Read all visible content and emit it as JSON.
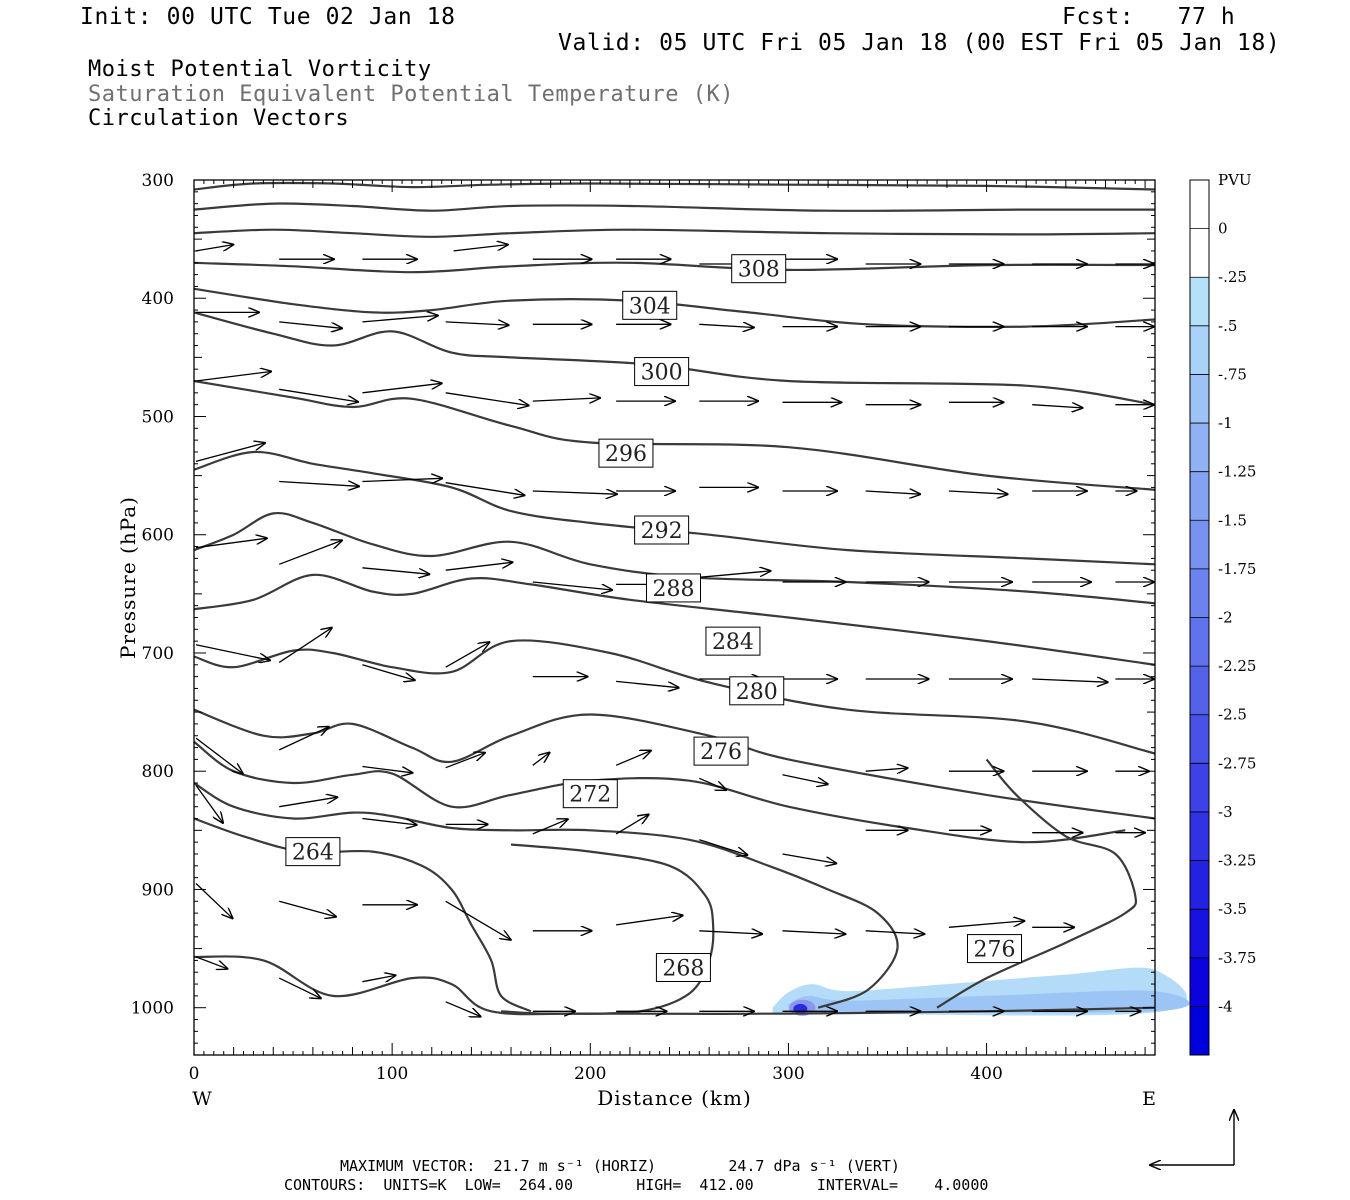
{
  "header": {
    "init": "Init: 00 UTC Tue 02 Jan 18",
    "fcst": "Fcst:   77 h",
    "valid": "Valid: 05 UTC Fri 05 Jan 18 (00 EST Fri 05 Jan 18)"
  },
  "legend": {
    "line1": "Moist Potential Vorticity",
    "line2": "Saturation Equivalent Potential Temperature (K)",
    "line3": "Circulation Vectors"
  },
  "colors": {
    "contour": "#3a3a3a",
    "legend_gray": "#707070",
    "mpv_light": "#b4dcf8",
    "mpv_mid": "#9cc4f4",
    "mpv_dark": "#2a2ae0"
  },
  "footer": {
    "line1": "MAXIMUM VECTOR:  21.7 m s⁻¹ (HORIZ)        24.7 dPa s⁻¹ (VERT)",
    "line2": "CONTOURS:  UNITS=K  LOW=  264.00       HIGH=  412.00       INTERVAL=    4.0000"
  },
  "chart_data": {
    "type": "contour-cross-section",
    "xlabel": "Distance (km)",
    "ylabel": "Pressure (hPa)",
    "xlim": [
      0,
      485
    ],
    "ylim": [
      1040,
      300
    ],
    "x_ticks": [
      0,
      100,
      200,
      300,
      400
    ],
    "y_ticks": [
      300,
      400,
      500,
      600,
      700,
      800,
      900,
      1000
    ],
    "x_end_labels": {
      "left": "W",
      "right": "E"
    },
    "contour_labels": [
      {
        "value": "308",
        "x": 285,
        "p": 375
      },
      {
        "value": "304",
        "x": 230,
        "p": 406
      },
      {
        "value": "300",
        "x": 236,
        "p": 462
      },
      {
        "value": "296",
        "x": 218,
        "p": 531
      },
      {
        "value": "292",
        "x": 236,
        "p": 596
      },
      {
        "value": "288",
        "x": 242,
        "p": 645
      },
      {
        "value": "284",
        "x": 272,
        "p": 690
      },
      {
        "value": "280",
        "x": 284,
        "p": 732
      },
      {
        "value": "276",
        "x": 266,
        "p": 783
      },
      {
        "value": "272",
        "x": 200,
        "p": 819
      },
      {
        "value": "264",
        "x": 60,
        "p": 868
      },
      {
        "value": "268",
        "x": 247,
        "p": 966
      },
      {
        "value": "276",
        "x": 404,
        "p": 950
      }
    ],
    "isentropes": [
      [
        [
          0,
          308
        ],
        [
          30,
          303
        ],
        [
          70,
          303
        ],
        [
          110,
          306
        ],
        [
          150,
          304
        ],
        [
          200,
          303
        ],
        [
          300,
          304
        ],
        [
          400,
          305
        ],
        [
          485,
          308
        ]
      ],
      [
        [
          0,
          325
        ],
        [
          40,
          320
        ],
        [
          80,
          322
        ],
        [
          120,
          326
        ],
        [
          160,
          322
        ],
        [
          220,
          322
        ],
        [
          320,
          326
        ],
        [
          420,
          325
        ],
        [
          485,
          325
        ]
      ],
      [
        [
          0,
          345
        ],
        [
          40,
          342
        ],
        [
          80,
          345
        ],
        [
          120,
          348
        ],
        [
          160,
          345
        ],
        [
          220,
          342
        ],
        [
          320,
          345
        ],
        [
          420,
          346
        ],
        [
          485,
          345
        ]
      ],
      [
        [
          0,
          370
        ],
        [
          50,
          373
        ],
        [
          110,
          378
        ],
        [
          160,
          373
        ],
        [
          220,
          370
        ],
        [
          300,
          376
        ],
        [
          400,
          372
        ],
        [
          485,
          372
        ]
      ],
      [
        [
          0,
          392
        ],
        [
          50,
          405
        ],
        [
          90,
          412
        ],
        [
          120,
          410
        ],
        [
          160,
          402
        ],
        [
          220,
          402
        ],
        [
          280,
          412
        ],
        [
          340,
          422
        ],
        [
          420,
          424
        ],
        [
          485,
          418
        ]
      ],
      [
        [
          0,
          412
        ],
        [
          40,
          430
        ],
        [
          70,
          440
        ],
        [
          100,
          428
        ],
        [
          130,
          446
        ],
        [
          160,
          450
        ],
        [
          230,
          456
        ],
        [
          300,
          470
        ],
        [
          420,
          474
        ],
        [
          485,
          490
        ]
      ],
      [
        [
          0,
          470
        ],
        [
          50,
          484
        ],
        [
          80,
          492
        ],
        [
          110,
          485
        ],
        [
          160,
          508
        ],
        [
          200,
          522
        ],
        [
          300,
          526
        ],
        [
          400,
          550
        ],
        [
          485,
          562
        ]
      ],
      [
        [
          0,
          545
        ],
        [
          30,
          530
        ],
        [
          60,
          540
        ],
        [
          90,
          548
        ],
        [
          130,
          560
        ],
        [
          160,
          580
        ],
        [
          200,
          590
        ],
        [
          260,
          600
        ],
        [
          330,
          613
        ],
        [
          420,
          620
        ],
        [
          485,
          625
        ]
      ],
      [
        [
          0,
          613
        ],
        [
          20,
          600
        ],
        [
          40,
          582
        ],
        [
          60,
          590
        ],
        [
          90,
          608
        ],
        [
          120,
          618
        ],
        [
          160,
          606
        ],
        [
          200,
          625
        ],
        [
          250,
          636
        ],
        [
          330,
          640
        ],
        [
          420,
          648
        ],
        [
          485,
          658
        ]
      ],
      [
        [
          0,
          663
        ],
        [
          30,
          655
        ],
        [
          60,
          634
        ],
        [
          90,
          648
        ],
        [
          110,
          650
        ],
        [
          140,
          637
        ],
        [
          170,
          642
        ],
        [
          220,
          655
        ],
        [
          300,
          670
        ],
        [
          400,
          690
        ],
        [
          485,
          710
        ]
      ],
      [
        [
          0,
          703
        ],
        [
          20,
          712
        ],
        [
          50,
          698
        ],
        [
          70,
          700
        ],
        [
          100,
          712
        ],
        [
          130,
          716
        ],
        [
          160,
          690
        ],
        [
          210,
          700
        ],
        [
          260,
          725
        ],
        [
          330,
          748
        ],
        [
          420,
          758
        ],
        [
          485,
          785
        ]
      ],
      [
        [
          0,
          748
        ],
        [
          35,
          770
        ],
        [
          60,
          768
        ],
        [
          80,
          760
        ],
        [
          110,
          780
        ],
        [
          130,
          792
        ],
        [
          160,
          770
        ],
        [
          200,
          752
        ],
        [
          260,
          770
        ],
        [
          300,
          790
        ],
        [
          400,
          820
        ],
        [
          485,
          840
        ]
      ],
      [
        [
          0,
          775
        ],
        [
          20,
          800
        ],
        [
          50,
          810
        ],
        [
          80,
          803
        ],
        [
          100,
          802
        ],
        [
          130,
          830
        ],
        [
          160,
          820
        ],
        [
          200,
          808
        ],
        [
          250,
          808
        ],
        [
          300,
          830
        ],
        [
          360,
          848
        ],
        [
          420,
          860
        ],
        [
          470,
          850
        ]
      ],
      [
        [
          0,
          810
        ],
        [
          20,
          830
        ],
        [
          50,
          840
        ],
        [
          80,
          835
        ],
        [
          100,
          838
        ],
        [
          130,
          848
        ],
        [
          160,
          850
        ],
        [
          200,
          850
        ],
        [
          250,
          858
        ],
        [
          290,
          880
        ],
        [
          320,
          900
        ],
        [
          345,
          920
        ],
        [
          355,
          950
        ],
        [
          340,
          985
        ],
        [
          315,
          1000
        ]
      ],
      [
        [
          0,
          840
        ],
        [
          25,
          855
        ],
        [
          55,
          868
        ],
        [
          90,
          868
        ],
        [
          115,
          880
        ],
        [
          130,
          900
        ],
        [
          140,
          930
        ],
        [
          150,
          960
        ],
        [
          155,
          990
        ],
        [
          170,
          1003
        ]
      ],
      [
        [
          155,
          1003
        ],
        [
          180,
          1005
        ],
        [
          225,
          1003
        ],
        [
          250,
          988
        ],
        [
          260,
          960
        ],
        [
          262,
          930
        ],
        [
          258,
          905
        ],
        [
          240,
          880
        ],
        [
          200,
          868
        ],
        [
          160,
          862
        ]
      ],
      [
        [
          0,
          957
        ],
        [
          35,
          960
        ],
        [
          70,
          990
        ],
        [
          110,
          975
        ],
        [
          130,
          980
        ],
        [
          150,
          1003
        ],
        [
          200,
          1005
        ],
        [
          300,
          1005
        ],
        [
          400,
          1003
        ],
        [
          485,
          1000
        ]
      ],
      [
        [
          375,
          1000
        ],
        [
          400,
          975
        ],
        [
          440,
          945
        ],
        [
          470,
          920
        ],
        [
          475,
          905
        ],
        [
          465,
          870
        ],
        [
          440,
          855
        ],
        [
          415,
          820
        ],
        [
          400,
          790
        ]
      ]
    ],
    "mpv_shading": {
      "levels": [
        -0.25,
        -0.5,
        -1,
        -2,
        -3,
        -4
      ],
      "features": "shallow negative MPV layer near 980-1005 hPa from ~295 km to east edge, minimum near 305 km"
    },
    "circulation_vectors_note": "mostly eastward (W to E) flow throughout the section, with rising motion below 700 hPa near 0-180 km",
    "colorbar": {
      "label": "PVU",
      "ticks": [
        "0",
        "-.25",
        "-.5",
        "-.75",
        "-1",
        "-1.25",
        "-1.5",
        "-1.75",
        "-2",
        "-2.25",
        "-2.5",
        "-2.75",
        "-3",
        "-3.25",
        "-3.5",
        "-3.75",
        "-4"
      ],
      "colors": [
        "#ffffff",
        "#ffffff",
        "#b4e0fa",
        "#a8d2f8",
        "#9cc2f6",
        "#90b2f4",
        "#84a2f2",
        "#7892f0",
        "#6c82ee",
        "#6072ec",
        "#5462ea",
        "#4852e8",
        "#3c42e6",
        "#3032e4",
        "#2422e2",
        "#1812e0",
        "#0c02de",
        "#0000dc"
      ]
    }
  }
}
